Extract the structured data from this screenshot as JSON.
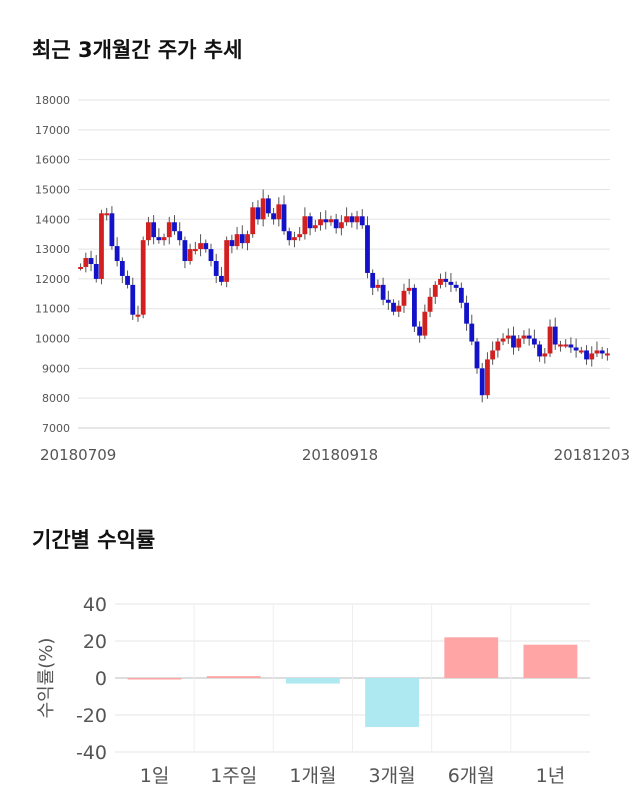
{
  "sections": {
    "price_title": "최근 3개월간 주가 추세",
    "returns_title": "기간별 수익률"
  },
  "colors": {
    "up": "#d21f1f",
    "down": "#1212c8",
    "positive": "#ffa5a5",
    "negative": "#aee8f0"
  },
  "chart_data": [
    {
      "type": "candlestick",
      "title": "최근 3개월간 주가 추세",
      "ylim": [
        7000,
        18000
      ],
      "yticks": [
        7000,
        8000,
        9000,
        10000,
        11000,
        12000,
        13000,
        14000,
        15000,
        16000,
        17000,
        18000
      ],
      "xtick_labels": [
        "20180709",
        "20180918",
        "20181203"
      ],
      "grid": true,
      "closes": [
        12400,
        12700,
        12500,
        12000,
        14200,
        14200,
        13100,
        12600,
        12100,
        11800,
        10800,
        10800,
        13300,
        13900,
        13400,
        13300,
        13400,
        13900,
        13600,
        13300,
        12600,
        13000,
        13000,
        13200,
        13000,
        12600,
        12100,
        11900,
        13300,
        13100,
        13500,
        13200,
        13500,
        14400,
        14000,
        14700,
        14200,
        14000,
        14500,
        13600,
        13300,
        13400,
        13500,
        14100,
        13700,
        13800,
        14000,
        13900,
        14000,
        13700,
        13900,
        14100,
        13900,
        14100,
        13800,
        12200,
        11700,
        11800,
        11300,
        11200,
        10900,
        11100,
        11600,
        11700,
        10400,
        10100,
        10900,
        11400,
        11800,
        12000,
        11900,
        11800,
        11700,
        11200,
        10500,
        9900,
        9000,
        8100,
        9300,
        9600,
        9900,
        10000,
        10100,
        9700,
        10000,
        10100,
        10000,
        9800,
        9400,
        9500,
        10400,
        9800,
        9800,
        9800,
        9700,
        9600,
        9600,
        9300,
        9500,
        9600,
        9500,
        9500
      ]
    },
    {
      "type": "bar",
      "categories": [
        "1일",
        "1주일",
        "1개월",
        "3개월",
        "6개월",
        "1년"
      ],
      "values": [
        0,
        1,
        -3,
        -26.5,
        22,
        18
      ],
      "ylabel": "수익률(%)",
      "ylim": [
        -40,
        40
      ],
      "yticks": [
        -40,
        -20,
        0,
        20,
        40
      ],
      "grid": true
    }
  ]
}
